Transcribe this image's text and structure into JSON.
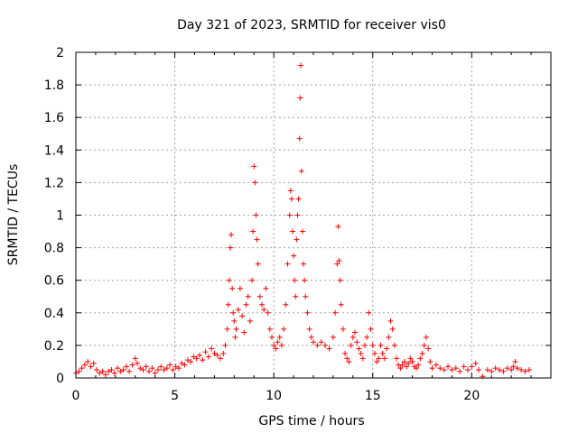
{
  "chart_data": {
    "type": "scatter",
    "title": "Day 321 of 2023, SRMTID for receiver vis0",
    "xlabel": "GPS time / hours",
    "ylabel": "SRMTID / TECUs",
    "xlim": [
      0,
      24
    ],
    "ylim": [
      0,
      2
    ],
    "grid": true,
    "legend": "none",
    "marker": "plus",
    "series_color": "#ff0000",
    "x_ticks": [
      0,
      5,
      10,
      15,
      20
    ],
    "x_tick_labels": [
      "0",
      "5",
      "10",
      "15",
      "20"
    ],
    "y_ticks": [
      0,
      0.2,
      0.4,
      0.6,
      0.8,
      1,
      1.2,
      1.4,
      1.6,
      1.8,
      2
    ],
    "y_tick_labels": [
      "0",
      "0.2",
      "0.4",
      "0.6",
      "0.8",
      "1",
      "1.2",
      "1.4",
      "1.6",
      "1.8",
      "2"
    ],
    "series": [
      {
        "name": "SRMTID",
        "points": [
          [
            0.0,
            0.03
          ],
          [
            0.15,
            0.04
          ],
          [
            0.3,
            0.06
          ],
          [
            0.45,
            0.08
          ],
          [
            0.6,
            0.1
          ],
          [
            0.75,
            0.07
          ],
          [
            0.9,
            0.09
          ],
          [
            1.05,
            0.05
          ],
          [
            1.2,
            0.03
          ],
          [
            1.35,
            0.04
          ],
          [
            1.5,
            0.02
          ],
          [
            1.65,
            0.04
          ],
          [
            1.8,
            0.05
          ],
          [
            1.95,
            0.03
          ],
          [
            2.1,
            0.06
          ],
          [
            2.25,
            0.04
          ],
          [
            2.4,
            0.05
          ],
          [
            2.55,
            0.07
          ],
          [
            2.7,
            0.04
          ],
          [
            2.85,
            0.08
          ],
          [
            3.0,
            0.12
          ],
          [
            3.1,
            0.09
          ],
          [
            3.25,
            0.06
          ],
          [
            3.4,
            0.05
          ],
          [
            3.55,
            0.07
          ],
          [
            3.7,
            0.04
          ],
          [
            3.85,
            0.06
          ],
          [
            4.0,
            0.03
          ],
          [
            4.15,
            0.05
          ],
          [
            4.3,
            0.07
          ],
          [
            4.45,
            0.05
          ],
          [
            4.6,
            0.06
          ],
          [
            4.75,
            0.08
          ],
          [
            4.9,
            0.05
          ],
          [
            5.05,
            0.07
          ],
          [
            5.2,
            0.06
          ],
          [
            5.35,
            0.09
          ],
          [
            5.5,
            0.08
          ],
          [
            5.65,
            0.11
          ],
          [
            5.8,
            0.1
          ],
          [
            5.95,
            0.13
          ],
          [
            6.1,
            0.12
          ],
          [
            6.25,
            0.14
          ],
          [
            6.4,
            0.11
          ],
          [
            6.55,
            0.16
          ],
          [
            6.7,
            0.13
          ],
          [
            6.85,
            0.18
          ],
          [
            7.0,
            0.15
          ],
          [
            7.15,
            0.14
          ],
          [
            7.3,
            0.12
          ],
          [
            7.45,
            0.15
          ],
          [
            7.55,
            0.2
          ],
          [
            7.65,
            0.3
          ],
          [
            7.7,
            0.45
          ],
          [
            7.75,
            0.6
          ],
          [
            7.8,
            0.8
          ],
          [
            7.85,
            0.88
          ],
          [
            7.9,
            0.55
          ],
          [
            7.95,
            0.4
          ],
          [
            8.0,
            0.35
          ],
          [
            8.05,
            0.25
          ],
          [
            8.1,
            0.3
          ],
          [
            8.2,
            0.42
          ],
          [
            8.3,
            0.55
          ],
          [
            8.4,
            0.38
          ],
          [
            8.5,
            0.28
          ],
          [
            8.6,
            0.45
          ],
          [
            8.7,
            0.5
          ],
          [
            8.8,
            0.35
          ],
          [
            8.9,
            0.6
          ],
          [
            8.95,
            0.9
          ],
          [
            9.0,
            1.3
          ],
          [
            9.05,
            1.2
          ],
          [
            9.1,
            1.0
          ],
          [
            9.15,
            0.85
          ],
          [
            9.2,
            0.7
          ],
          [
            9.3,
            0.5
          ],
          [
            9.4,
            0.45
          ],
          [
            9.5,
            0.42
          ],
          [
            9.6,
            0.55
          ],
          [
            9.7,
            0.4
          ],
          [
            9.8,
            0.3
          ],
          [
            9.9,
            0.25
          ],
          [
            10.0,
            0.2
          ],
          [
            10.1,
            0.18
          ],
          [
            10.2,
            0.22
          ],
          [
            10.3,
            0.25
          ],
          [
            10.4,
            0.2
          ],
          [
            10.5,
            0.3
          ],
          [
            10.6,
            0.45
          ],
          [
            10.7,
            0.7
          ],
          [
            10.8,
            1.0
          ],
          [
            10.85,
            1.15
          ],
          [
            10.9,
            1.1
          ],
          [
            10.95,
            0.9
          ],
          [
            11.0,
            0.75
          ],
          [
            11.05,
            0.6
          ],
          [
            11.1,
            0.5
          ],
          [
            11.15,
            0.85
          ],
          [
            11.2,
            1.0
          ],
          [
            11.25,
            1.1
          ],
          [
            11.3,
            1.47
          ],
          [
            11.33,
            1.72
          ],
          [
            11.36,
            1.92
          ],
          [
            11.4,
            1.27
          ],
          [
            11.45,
            0.9
          ],
          [
            11.5,
            0.7
          ],
          [
            11.55,
            0.6
          ],
          [
            11.6,
            0.5
          ],
          [
            11.7,
            0.4
          ],
          [
            11.8,
            0.3
          ],
          [
            11.9,
            0.25
          ],
          [
            12.0,
            0.22
          ],
          [
            12.2,
            0.2
          ],
          [
            12.4,
            0.22
          ],
          [
            12.6,
            0.2
          ],
          [
            12.8,
            0.18
          ],
          [
            13.0,
            0.25
          ],
          [
            13.1,
            0.4
          ],
          [
            13.2,
            0.7
          ],
          [
            13.25,
            0.93
          ],
          [
            13.3,
            0.72
          ],
          [
            13.35,
            0.6
          ],
          [
            13.4,
            0.45
          ],
          [
            13.5,
            0.3
          ],
          [
            13.6,
            0.15
          ],
          [
            13.7,
            0.12
          ],
          [
            13.8,
            0.1
          ],
          [
            13.9,
            0.2
          ],
          [
            14.0,
            0.25
          ],
          [
            14.1,
            0.28
          ],
          [
            14.2,
            0.22
          ],
          [
            14.3,
            0.18
          ],
          [
            14.4,
            0.15
          ],
          [
            14.5,
            0.12
          ],
          [
            14.6,
            0.2
          ],
          [
            14.7,
            0.25
          ],
          [
            14.8,
            0.4
          ],
          [
            14.9,
            0.3
          ],
          [
            15.0,
            0.2
          ],
          [
            15.1,
            0.15
          ],
          [
            15.2,
            0.1
          ],
          [
            15.3,
            0.12
          ],
          [
            15.4,
            0.2
          ],
          [
            15.5,
            0.15
          ],
          [
            15.6,
            0.12
          ],
          [
            15.7,
            0.18
          ],
          [
            15.8,
            0.25
          ],
          [
            15.9,
            0.35
          ],
          [
            16.0,
            0.3
          ],
          [
            16.1,
            0.2
          ],
          [
            16.2,
            0.12
          ],
          [
            16.3,
            0.08
          ],
          [
            16.4,
            0.06
          ],
          [
            16.5,
            0.08
          ],
          [
            16.6,
            0.1
          ],
          [
            16.7,
            0.07
          ],
          [
            16.8,
            0.09
          ],
          [
            16.9,
            0.12
          ],
          [
            17.0,
            0.1
          ],
          [
            17.1,
            0.07
          ],
          [
            17.2,
            0.06
          ],
          [
            17.3,
            0.08
          ],
          [
            17.4,
            0.12
          ],
          [
            17.5,
            0.15
          ],
          [
            17.6,
            0.2
          ],
          [
            17.7,
            0.25
          ],
          [
            17.8,
            0.18
          ],
          [
            17.9,
            0.1
          ],
          [
            18.0,
            0.06
          ],
          [
            18.2,
            0.08
          ],
          [
            18.4,
            0.06
          ],
          [
            18.6,
            0.05
          ],
          [
            18.8,
            0.07
          ],
          [
            19.0,
            0.05
          ],
          [
            19.2,
            0.06
          ],
          [
            19.4,
            0.04
          ],
          [
            19.6,
            0.07
          ],
          [
            19.8,
            0.05
          ],
          [
            20.0,
            0.07
          ],
          [
            20.2,
            0.09
          ],
          [
            20.35,
            0.05
          ],
          [
            20.55,
            0.01
          ],
          [
            20.8,
            0.05
          ],
          [
            21.0,
            0.04
          ],
          [
            21.2,
            0.06
          ],
          [
            21.4,
            0.05
          ],
          [
            21.6,
            0.04
          ],
          [
            21.8,
            0.06
          ],
          [
            22.0,
            0.05
          ],
          [
            22.1,
            0.07
          ],
          [
            22.2,
            0.1
          ],
          [
            22.3,
            0.06
          ],
          [
            22.5,
            0.05
          ],
          [
            22.7,
            0.04
          ],
          [
            22.9,
            0.05
          ]
        ]
      }
    ]
  }
}
